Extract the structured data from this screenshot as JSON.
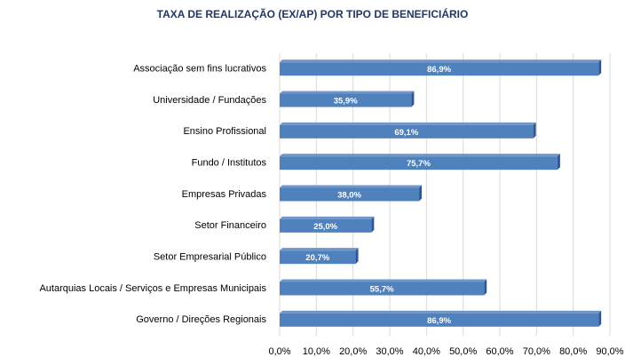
{
  "chart_data": {
    "type": "bar",
    "orientation": "horizontal",
    "title": "TAXA DE REALIZAÇÃO (EX/AP) POR TIPO DE BENEFICIÁRIO",
    "categories": [
      "Associação sem fins lucrativos",
      "Universidade / Fundações",
      "Ensino Profissional",
      "Fundo / Institutos",
      "Empresas Privadas",
      "Setor Financeiro",
      "Setor Empresarial Público",
      "Autarquias Locais / Serviços e Empresas Municipais",
      "Governo / Direções Regionais"
    ],
    "values": [
      86.9,
      35.9,
      69.1,
      75.7,
      38.0,
      25.0,
      20.7,
      55.7,
      86.9
    ],
    "value_labels": [
      "86,9%",
      "35,9%",
      "69,1%",
      "75,7%",
      "38,0%",
      "25,0%",
      "20,7%",
      "55,7%",
      "86,9%"
    ],
    "color": "#4f81bd",
    "xlim": [
      0,
      90
    ],
    "xticks": [
      {
        "value": 0,
        "label": "0,0%"
      },
      {
        "value": 10,
        "label": "10,0%"
      },
      {
        "value": 20,
        "label": "20,0%"
      },
      {
        "value": 30,
        "label": "30,0%"
      },
      {
        "value": 40,
        "label": "40,0%"
      },
      {
        "value": 50,
        "label": "50,0%"
      },
      {
        "value": 60,
        "label": "60,0%"
      },
      {
        "value": 70,
        "label": "70,0%"
      },
      {
        "value": 80,
        "label": "80,0%"
      },
      {
        "value": 90,
        "label": "90,0%"
      }
    ],
    "grid": true
  }
}
